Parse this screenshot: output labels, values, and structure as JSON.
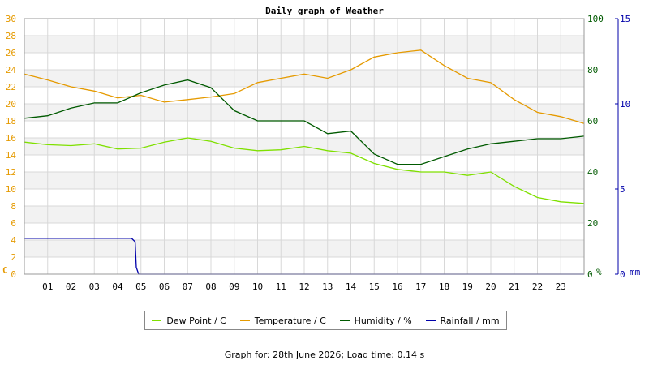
{
  "chart_data": {
    "type": "line",
    "title": "Daily graph of Weather",
    "x_ticks": [
      "01",
      "02",
      "03",
      "04",
      "05",
      "06",
      "07",
      "08",
      "09",
      "10",
      "11",
      "12",
      "13",
      "14",
      "15",
      "16",
      "17",
      "18",
      "19",
      "20",
      "21",
      "22",
      "23"
    ],
    "x_unit": "hour",
    "x_range": [
      0,
      24
    ],
    "axes": {
      "temperature": {
        "unit_label": "C",
        "range": [
          0,
          30
        ],
        "ticks": [
          0,
          2,
          4,
          6,
          8,
          10,
          12,
          14,
          16,
          18,
          20,
          22,
          24,
          26,
          28,
          30
        ],
        "color": "#E59A00",
        "side": "left"
      },
      "humidity": {
        "unit_label": "%",
        "range": [
          0,
          100
        ],
        "ticks": [
          0,
          20,
          40,
          60,
          80,
          100
        ],
        "color": "#005A00",
        "side": "right"
      },
      "rainfall": {
        "unit_label": "mm",
        "range": [
          0,
          15
        ],
        "ticks": [
          0,
          5,
          10,
          15
        ],
        "color": "#0000AA",
        "side": "far-right"
      }
    },
    "series": [
      {
        "name": "Dew Point / C",
        "axis": "temperature",
        "color": "#7FE000",
        "points": [
          [
            0,
            15.5
          ],
          [
            1,
            15.2
          ],
          [
            2,
            15.1
          ],
          [
            3,
            15.3
          ],
          [
            4,
            14.7
          ],
          [
            5,
            14.8
          ],
          [
            6,
            15.5
          ],
          [
            7,
            16.0
          ],
          [
            8,
            15.6
          ],
          [
            9,
            14.8
          ],
          [
            10,
            14.5
          ],
          [
            11,
            14.6
          ],
          [
            12,
            15.0
          ],
          [
            13,
            14.5
          ],
          [
            14,
            14.2
          ],
          [
            15,
            13.0
          ],
          [
            16,
            12.3
          ],
          [
            17,
            12.0
          ],
          [
            18,
            12.0
          ],
          [
            19,
            11.6
          ],
          [
            20,
            12.0
          ],
          [
            21,
            10.3
          ],
          [
            22,
            9.0
          ],
          [
            23,
            8.5
          ],
          [
            24,
            8.3
          ]
        ]
      },
      {
        "name": "Temperature / C",
        "axis": "temperature",
        "color": "#E59A00",
        "points": [
          [
            0,
            23.5
          ],
          [
            1,
            22.8
          ],
          [
            2,
            22.0
          ],
          [
            3,
            21.5
          ],
          [
            4,
            20.7
          ],
          [
            5,
            21.0
          ],
          [
            6,
            20.2
          ],
          [
            7,
            20.5
          ],
          [
            8,
            20.8
          ],
          [
            9,
            21.2
          ],
          [
            10,
            22.5
          ],
          [
            11,
            23.0
          ],
          [
            12,
            23.5
          ],
          [
            13,
            23.0
          ],
          [
            14,
            24.0
          ],
          [
            15,
            25.5
          ],
          [
            16,
            26.0
          ],
          [
            17,
            26.3
          ],
          [
            18,
            24.5
          ],
          [
            19,
            23.0
          ],
          [
            20,
            22.5
          ],
          [
            21,
            20.5
          ],
          [
            22,
            19.0
          ],
          [
            23,
            18.5
          ],
          [
            24,
            17.7
          ]
        ]
      },
      {
        "name": "Humidity / %",
        "axis": "humidity",
        "color": "#005A00",
        "points": [
          [
            0,
            61
          ],
          [
            1,
            62
          ],
          [
            2,
            65
          ],
          [
            3,
            67
          ],
          [
            4,
            67
          ],
          [
            5,
            71
          ],
          [
            6,
            74
          ],
          [
            7,
            76
          ],
          [
            8,
            73
          ],
          [
            9,
            64
          ],
          [
            10,
            60
          ],
          [
            11,
            60
          ],
          [
            12,
            60
          ],
          [
            13,
            55
          ],
          [
            14,
            56
          ],
          [
            15,
            47
          ],
          [
            16,
            43
          ],
          [
            17,
            43
          ],
          [
            18,
            46
          ],
          [
            19,
            49
          ],
          [
            20,
            51
          ],
          [
            21,
            52
          ],
          [
            22,
            53
          ],
          [
            23,
            53
          ],
          [
            24,
            54
          ]
        ]
      },
      {
        "name": "Rainfall / mm",
        "axis": "rainfall",
        "color": "#0000AA",
        "points": [
          [
            0,
            2.1
          ],
          [
            4.6,
            2.1
          ],
          [
            4.75,
            1.9
          ],
          [
            4.8,
            0.4
          ],
          [
            4.9,
            0
          ],
          [
            24,
            0
          ]
        ]
      }
    ],
    "legend_position": "bottom",
    "grid": true,
    "footer": "Graph for: 28th June 2026; Load time: 0.14 s"
  }
}
